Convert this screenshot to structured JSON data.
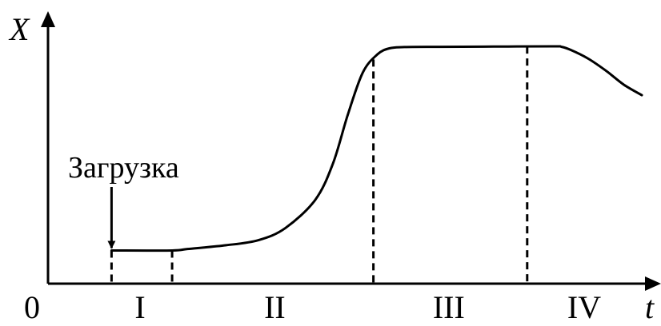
{
  "chart_data": {
    "type": "line",
    "title": "",
    "xlabel": "t",
    "ylabel": "X",
    "origin_label": "0",
    "grid": false,
    "xlim": [
      0,
      100
    ],
    "ylim": [
      0,
      100
    ],
    "series": [
      {
        "x": [
          10.7,
          20.9,
          23.5,
          30.0,
          35.5,
          40.0,
          45.0,
          48.0,
          50.5,
          53.0,
          55.5,
          57.5,
          60.0,
          66.0,
          75.0,
          85.0,
          86.5,
          88.0,
          91.0,
          94.0,
          97.0,
          100.0
        ],
        "y": [
          13.4,
          13.4,
          14.0,
          15.5,
          17.6,
          22.5,
          33.8,
          48.6,
          68.3,
          85.2,
          92.6,
          95.0,
          95.5,
          95.6,
          95.7,
          95.8,
          95.6,
          94.4,
          90.8,
          85.9,
          80.3,
          76.1
        ]
      }
    ],
    "phase_boundaries": [
      10.7,
      20.9,
      54.8,
      80.7
    ],
    "phases": [
      {
        "label": "I",
        "center": 15.5
      },
      {
        "label": "II",
        "center": 38.2
      },
      {
        "label": "III",
        "center": 67.5
      },
      {
        "label": "IV",
        "center": 90.3
      }
    ],
    "annotations": [
      {
        "text": "Загрузка",
        "x": 10.7
      }
    ]
  }
}
